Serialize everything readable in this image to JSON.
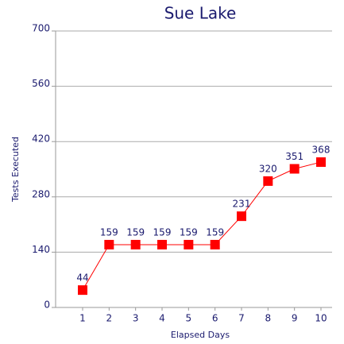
{
  "chart_data": {
    "type": "line",
    "title": "Sue Lake",
    "xlabel": "Elapsed Days",
    "ylabel": "Tests Executed",
    "categories": [
      "1",
      "2",
      "3",
      "4",
      "5",
      "6",
      "7",
      "8",
      "9",
      "10"
    ],
    "values": [
      44,
      159,
      159,
      159,
      159,
      159,
      231,
      320,
      351,
      368
    ],
    "color": "#ff0000",
    "ylim": [
      0,
      700
    ],
    "yticks": [
      0,
      140,
      280,
      420,
      560,
      700
    ],
    "grid": true
  }
}
